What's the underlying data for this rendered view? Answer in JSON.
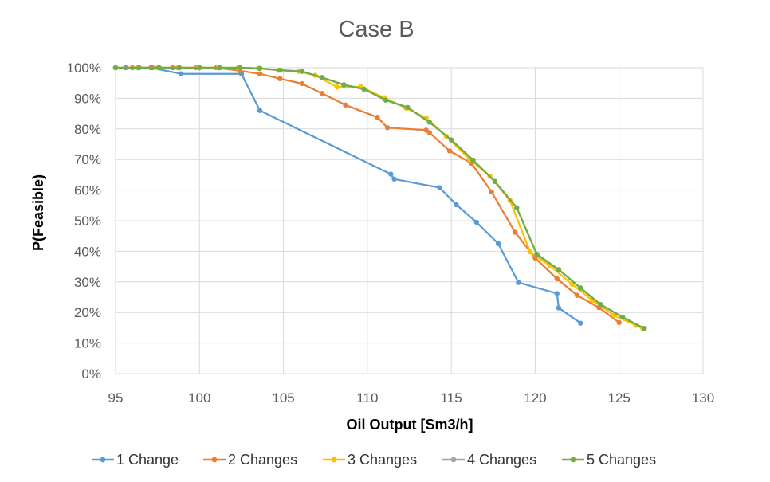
{
  "chart_data": {
    "type": "line",
    "title": "Case B",
    "xlabel": "Oil Output [Sm3/h]",
    "ylabel": "P(Feasible)",
    "xlim": [
      95,
      130
    ],
    "ylim": [
      0,
      1
    ],
    "x_ticks": [
      "95",
      "100",
      "105",
      "110",
      "115",
      "120",
      "125",
      "130"
    ],
    "y_ticks": [
      "0%",
      "10%",
      "20%",
      "30%",
      "40%",
      "50%",
      "60%",
      "70%",
      "80%",
      "90%",
      "100%"
    ],
    "grid": true,
    "legend_position": "bottom",
    "series": [
      {
        "name": "1 Change",
        "color": "#5B9BD5",
        "points": [
          [
            95.0,
            1.0
          ],
          [
            95.6,
            1.0
          ],
          [
            96.3,
            1.0
          ],
          [
            97.1,
            1.0
          ],
          [
            98.9,
            0.98
          ],
          [
            102.5,
            0.98
          ],
          [
            103.6,
            0.86
          ],
          [
            111.4,
            0.652
          ],
          [
            111.6,
            0.636
          ],
          [
            114.3,
            0.608
          ],
          [
            115.3,
            0.552
          ],
          [
            116.5,
            0.495
          ],
          [
            117.8,
            0.425
          ],
          [
            119.0,
            0.298
          ],
          [
            121.3,
            0.262
          ],
          [
            121.4,
            0.215
          ],
          [
            122.7,
            0.165
          ]
        ]
      },
      {
        "name": "2 Changes",
        "color": "#ED7D31",
        "points": [
          [
            95.0,
            1.0
          ],
          [
            96.0,
            1.0
          ],
          [
            97.2,
            1.0
          ],
          [
            98.4,
            1.0
          ],
          [
            99.8,
            1.0
          ],
          [
            101.0,
            1.0
          ],
          [
            102.4,
            0.99
          ],
          [
            103.6,
            0.98
          ],
          [
            104.8,
            0.964
          ],
          [
            106.1,
            0.948
          ],
          [
            107.3,
            0.916
          ],
          [
            108.7,
            0.878
          ],
          [
            110.6,
            0.838
          ],
          [
            111.2,
            0.804
          ],
          [
            113.5,
            0.796
          ],
          [
            113.7,
            0.788
          ],
          [
            114.9,
            0.728
          ],
          [
            116.2,
            0.688
          ],
          [
            117.4,
            0.594
          ],
          [
            118.8,
            0.462
          ],
          [
            120.0,
            0.378
          ],
          [
            121.3,
            0.31
          ],
          [
            122.5,
            0.256
          ],
          [
            123.8,
            0.216
          ],
          [
            125.0,
            0.167
          ]
        ]
      },
      {
        "name": "3 Changes",
        "color": "#FFC000",
        "points": [
          [
            95.0,
            1.0
          ],
          [
            96.3,
            1.0
          ],
          [
            97.5,
            1.0
          ],
          [
            98.7,
            1.0
          ],
          [
            99.9,
            1.0
          ],
          [
            101.1,
            1.0
          ],
          [
            102.3,
            1.0
          ],
          [
            103.5,
            0.998
          ],
          [
            104.7,
            0.992
          ],
          [
            105.9,
            0.988
          ],
          [
            106.9,
            0.975
          ],
          [
            108.2,
            0.937
          ],
          [
            109.6,
            0.938
          ],
          [
            111.0,
            0.902
          ],
          [
            112.3,
            0.868
          ],
          [
            113.5,
            0.836
          ],
          [
            114.7,
            0.776
          ],
          [
            116.1,
            0.7
          ],
          [
            117.3,
            0.646
          ],
          [
            118.5,
            0.566
          ],
          [
            119.7,
            0.398
          ],
          [
            120.9,
            0.352
          ],
          [
            122.2,
            0.292
          ],
          [
            123.4,
            0.24
          ],
          [
            124.7,
            0.19
          ],
          [
            126.0,
            0.158
          ],
          [
            126.4,
            0.148
          ]
        ]
      },
      {
        "name": "4 Changes",
        "color": "#A5A5A5",
        "points": [
          [
            95.0,
            1.0
          ],
          [
            96.4,
            1.0
          ],
          [
            97.6,
            1.0
          ],
          [
            98.8,
            1.0
          ],
          [
            100.0,
            1.0
          ],
          [
            101.2,
            1.0
          ],
          [
            102.4,
            1.0
          ],
          [
            103.6,
            0.998
          ],
          [
            104.8,
            0.992
          ],
          [
            106.1,
            0.988
          ],
          [
            107.3,
            0.968
          ],
          [
            108.6,
            0.944
          ],
          [
            109.8,
            0.93
          ],
          [
            111.1,
            0.894
          ],
          [
            112.4,
            0.87
          ],
          [
            113.7,
            0.822
          ],
          [
            115.0,
            0.764
          ],
          [
            116.3,
            0.698
          ],
          [
            117.6,
            0.628
          ],
          [
            118.9,
            0.542
          ],
          [
            120.1,
            0.39
          ],
          [
            121.4,
            0.34
          ],
          [
            122.7,
            0.28
          ],
          [
            123.9,
            0.226
          ],
          [
            125.2,
            0.185
          ],
          [
            126.5,
            0.148
          ]
        ]
      },
      {
        "name": "5 Changes",
        "color": "#70AD47",
        "points": [
          [
            95.0,
            1.0
          ],
          [
            96.4,
            1.0
          ],
          [
            97.6,
            1.0
          ],
          [
            98.8,
            1.0
          ],
          [
            100.0,
            1.0
          ],
          [
            101.2,
            1.0
          ],
          [
            102.4,
            1.0
          ],
          [
            103.6,
            0.998
          ],
          [
            104.8,
            0.992
          ],
          [
            106.1,
            0.988
          ],
          [
            107.3,
            0.968
          ],
          [
            108.6,
            0.944
          ],
          [
            109.8,
            0.93
          ],
          [
            111.1,
            0.894
          ],
          [
            112.4,
            0.87
          ],
          [
            113.7,
            0.822
          ],
          [
            115.0,
            0.764
          ],
          [
            116.3,
            0.698
          ],
          [
            117.6,
            0.628
          ],
          [
            118.9,
            0.542
          ],
          [
            120.1,
            0.39
          ],
          [
            121.4,
            0.34
          ],
          [
            122.7,
            0.28
          ],
          [
            123.9,
            0.226
          ],
          [
            125.2,
            0.185
          ],
          [
            126.5,
            0.148
          ]
        ]
      }
    ]
  }
}
